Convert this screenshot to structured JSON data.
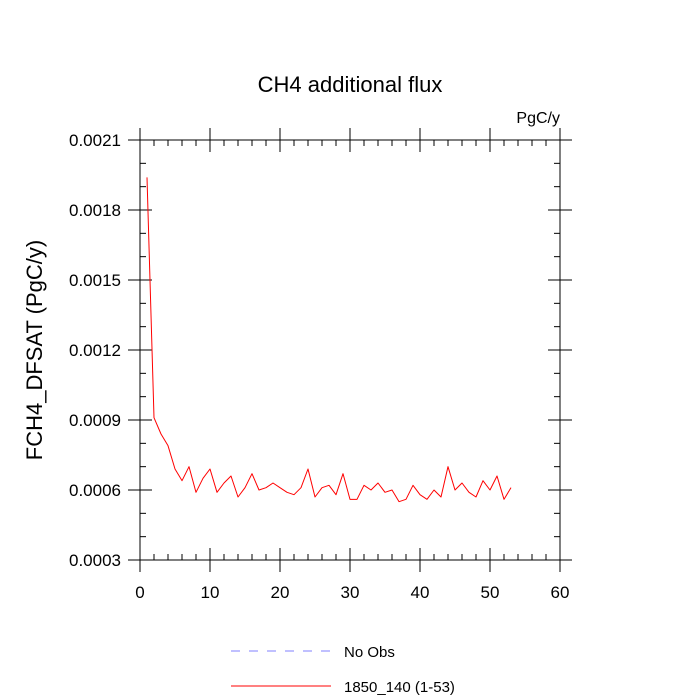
{
  "chart_data": {
    "type": "line",
    "title": "CH4 additional flux",
    "units_label": "PgC/y",
    "ylabel": "FCH4_DFSAT  (PgC/y)",
    "xlabel": "",
    "xlim": [
      0,
      60
    ],
    "ylim": [
      0.0003,
      0.0021
    ],
    "xticks": [
      0,
      10,
      20,
      30,
      40,
      50,
      60
    ],
    "xtick_labels": [
      "0",
      "10",
      "20",
      "30",
      "40",
      "50",
      "60"
    ],
    "yticks": [
      0.0003,
      0.0006,
      0.0009,
      0.0012,
      0.0015,
      0.0018,
      0.0021
    ],
    "ytick_labels": [
      "0.0003",
      "0.0006",
      "0.0009",
      "0.0012",
      "0.0015",
      "0.0018",
      "0.0021"
    ],
    "grid": false,
    "legend_position": "bottom",
    "legend": [
      {
        "label": "No Obs",
        "color": "#8080ff",
        "style": "dashed"
      },
      {
        "label": "1850_140 (1-53)",
        "color": "#ff0000",
        "style": "solid"
      }
    ],
    "series": [
      {
        "name": "1850_140 (1-53)",
        "color": "#ff0000",
        "x": [
          1,
          2,
          3,
          4,
          5,
          6,
          7,
          8,
          9,
          10,
          11,
          12,
          13,
          14,
          15,
          16,
          17,
          18,
          19,
          20,
          21,
          22,
          23,
          24,
          25,
          26,
          27,
          28,
          29,
          30,
          31,
          32,
          33,
          34,
          35,
          36,
          37,
          38,
          39,
          40,
          41,
          42,
          43,
          44,
          45,
          46,
          47,
          48,
          49,
          50,
          51,
          52,
          53
        ],
        "y": [
          0.00194,
          0.00091,
          0.00084,
          0.00079,
          0.00069,
          0.00064,
          0.0007,
          0.00059,
          0.00065,
          0.00069,
          0.00059,
          0.00063,
          0.00066,
          0.00057,
          0.00061,
          0.00067,
          0.0006,
          0.00061,
          0.00063,
          0.00061,
          0.00059,
          0.00058,
          0.00061,
          0.00069,
          0.00057,
          0.00061,
          0.00062,
          0.00058,
          0.00067,
          0.00056,
          0.00056,
          0.00062,
          0.0006,
          0.00063,
          0.00059,
          0.0006,
          0.00055,
          0.00056,
          0.00062,
          0.00058,
          0.00056,
          0.0006,
          0.00057,
          0.0007,
          0.0006,
          0.00063,
          0.00059,
          0.00057,
          0.00064,
          0.0006,
          0.00066,
          0.00056,
          0.00061
        ]
      }
    ]
  }
}
